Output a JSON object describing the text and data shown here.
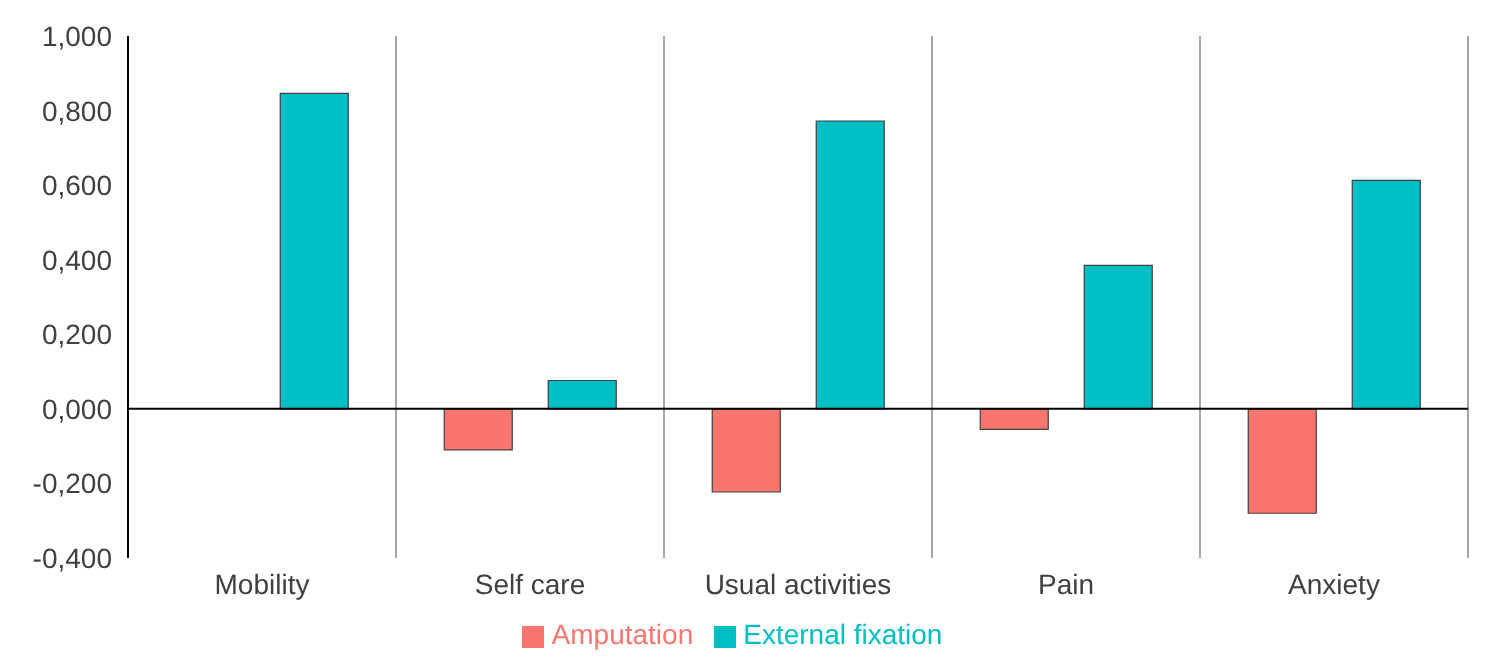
{
  "chart_data": {
    "type": "bar",
    "categories": [
      "Mobility",
      "Self care",
      "Usual activities",
      "Pain",
      "Anxiety"
    ],
    "series": [
      {
        "name": "Amputation",
        "color": "#f8766d",
        "values": [
          0,
          -0.11,
          -0.223,
          -0.055,
          -0.28
        ]
      },
      {
        "name": "External fixation",
        "color": "#00bfc4",
        "values": [
          0.846,
          0.076,
          0.772,
          0.385,
          0.613
        ]
      }
    ],
    "ylim": [
      -0.4,
      1.0
    ],
    "yticks": [
      {
        "value": -0.4,
        "label": "-0,400"
      },
      {
        "value": -0.2,
        "label": "-0,200"
      },
      {
        "value": 0,
        "label": "0,000"
      },
      {
        "value": 0.2,
        "label": "0,200"
      },
      {
        "value": 0.4,
        "label": "0,400"
      },
      {
        "value": 0.6,
        "label": "0,600"
      },
      {
        "value": 0.8,
        "label": "0,800"
      },
      {
        "value": 1.0,
        "label": "1,000"
      }
    ],
    "grid": "x",
    "legend": "bottom"
  }
}
